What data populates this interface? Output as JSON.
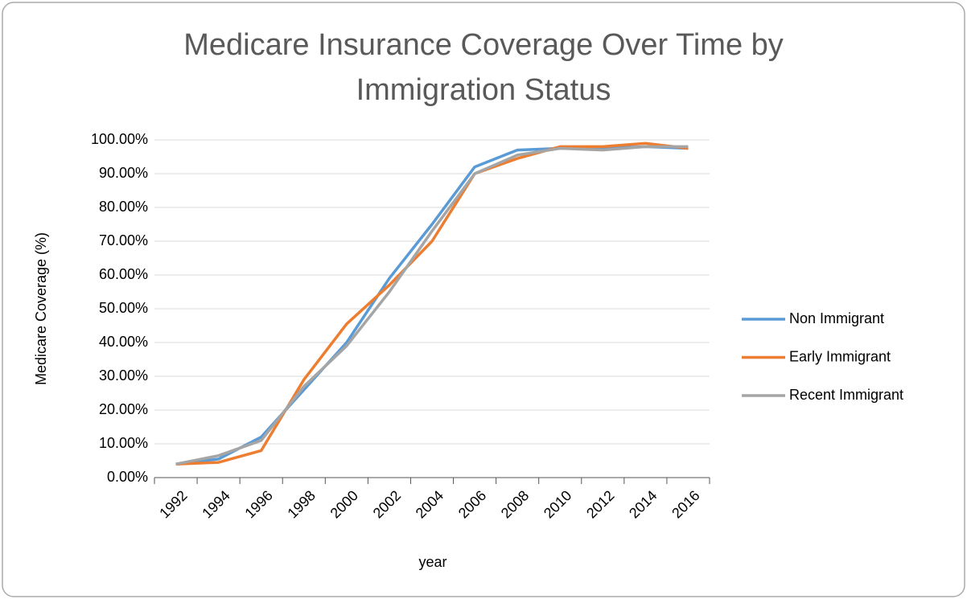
{
  "chart_data": {
    "type": "line",
    "title": "Medicare Insurance Coverage Over Time by Immigration Status",
    "x_label": "year",
    "y_label": "Medicare Coverage (%)",
    "categories": [
      "1992",
      "1994",
      "1996",
      "1998",
      "2000",
      "2002",
      "2004",
      "2006",
      "2008",
      "2010",
      "2012",
      "2014",
      "2016"
    ],
    "series": [
      {
        "name": "Non Immigrant",
        "color": "#5b9bd5",
        "values": [
          4,
          5.5,
          12,
          26,
          40,
          59,
          75,
          92,
          97,
          97.5,
          97.5,
          98,
          97.5
        ]
      },
      {
        "name": "Early Immigrant",
        "color": "#ed7d31",
        "values": [
          4,
          4.5,
          8,
          29,
          45.5,
          57,
          70,
          90,
          94.5,
          98,
          98,
          99,
          97.5
        ]
      },
      {
        "name": "Recent Immigrant",
        "color": "#a5a5a5",
        "values": [
          4,
          6.5,
          11,
          27,
          39,
          55,
          73,
          90,
          95.5,
          97.5,
          97,
          98,
          98
        ]
      }
    ],
    "ylim": [
      0,
      100
    ],
    "yticks": [
      {
        "value": 0,
        "label": "0.00%"
      },
      {
        "value": 10,
        "label": "10.00%"
      },
      {
        "value": 20,
        "label": "20.00%"
      },
      {
        "value": 30,
        "label": "30.00%"
      },
      {
        "value": 40,
        "label": "40.00%"
      },
      {
        "value": 50,
        "label": "50.00%"
      },
      {
        "value": 60,
        "label": "60.00%"
      },
      {
        "value": 70,
        "label": "70.00%"
      },
      {
        "value": 80,
        "label": "80.00%"
      },
      {
        "value": 90,
        "label": "90.00%"
      },
      {
        "value": 100,
        "label": "100.00%"
      }
    ],
    "grid": true,
    "legend": "right"
  }
}
